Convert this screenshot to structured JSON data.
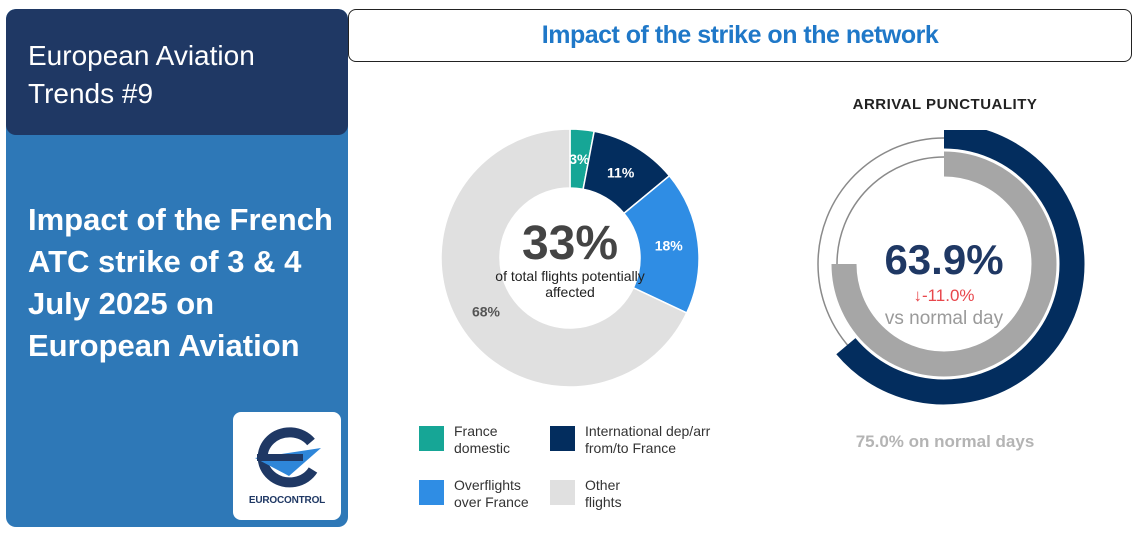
{
  "left_panel": {
    "series_title": "European Aviation Trends #9",
    "report_title": "Impact of the French ATC strike of 3 & 4 July 2025 on European Aviation",
    "logo_text": "EUROCONTROL"
  },
  "section_title": "Impact of the strike on the network",
  "colors": {
    "navy": "#1f3864",
    "panel_blue": "#2e78b7",
    "header_blue": "#1f78c8",
    "teal": "#16a696",
    "dark_navy": "#032d5e",
    "bright_blue": "#2f8de4",
    "light_grey": "#e0e0e0",
    "accent_red": "#e8474c"
  },
  "chart_data": [
    {
      "type": "pie",
      "variant": "donut",
      "center_value": "33%",
      "center_caption": "of total flights potentially affected",
      "slices": [
        {
          "label": "France domestic",
          "value": 3,
          "value_label": "3%",
          "color": "#16a696",
          "label_color": "#ffffff"
        },
        {
          "label": "International dep/arr from/to France",
          "value": 11,
          "value_label": "11%",
          "color": "#032d5e",
          "label_color": "#ffffff"
        },
        {
          "label": "Overflights over France",
          "value": 18,
          "value_label": "18%",
          "color": "#2f8de4",
          "label_color": "#ffffff"
        },
        {
          "label": "Other flights",
          "value": 68,
          "value_label": "68%",
          "color": "#e0e0e0",
          "label_color": "#555555"
        }
      ],
      "legend": [
        {
          "label": "France domestic",
          "color": "#16a696"
        },
        {
          "label": "International dep/arr from/to France",
          "color": "#032d5e"
        },
        {
          "label": "Overflights over France",
          "color": "#2f8de4"
        },
        {
          "label": "Other flights",
          "color": "#e0e0e0"
        }
      ],
      "legend_placement": "bottom"
    },
    {
      "type": "gauge",
      "title": "ARRIVAL PUNCTUALITY",
      "value": 63.9,
      "value_label": "63.9%",
      "delta_label": "↓-11.0%",
      "delta_color": "#e8474c",
      "subtitle": "vs normal day",
      "normal_value": 75.0,
      "normal_label": "75.0% on normal days",
      "value_color": "#032d5e",
      "normal_color": "#a6a6a6"
    }
  ]
}
